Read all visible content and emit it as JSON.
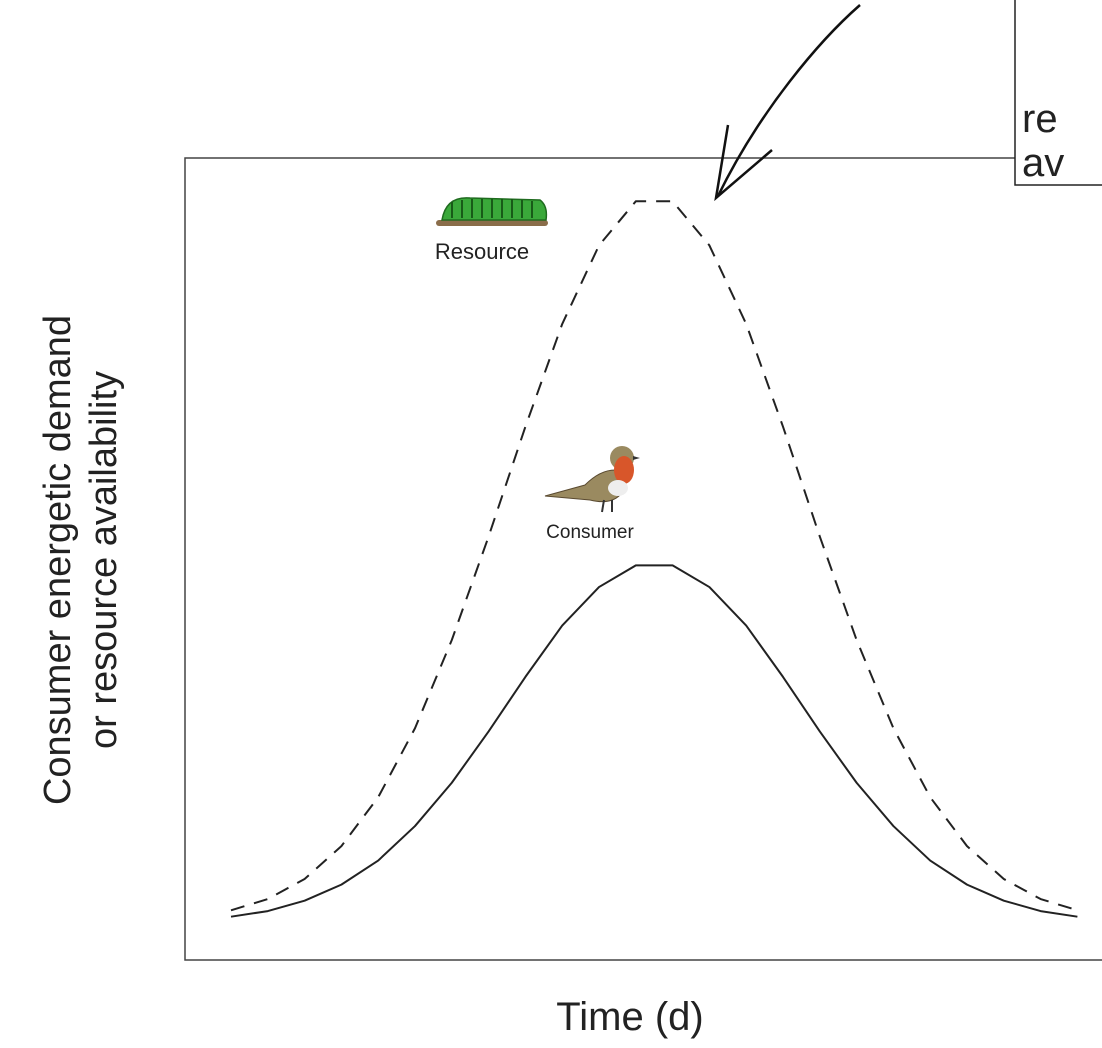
{
  "chart_data": {
    "type": "line",
    "xlabel": "Time (d)",
    "ylabel": [
      "Consumer energetic demand",
      "or resource  availability"
    ],
    "annotation": [
      "re",
      "av"
    ],
    "xlim": [
      0,
      100
    ],
    "ylim": [
      0,
      100
    ],
    "x": [
      5,
      9,
      13,
      17,
      21,
      25,
      29,
      33,
      37,
      41,
      45,
      49,
      53,
      57,
      61,
      65,
      69,
      73,
      77,
      81,
      85,
      89,
      93,
      97
    ],
    "series": [
      {
        "name": "Resource",
        "color": "#222222",
        "dashed": true,
        "values": [
          6.2,
          7.6,
          10.1,
          14.2,
          20.3,
          28.9,
          39.9,
          52.8,
          66.5,
          79.3,
          89.1,
          94.6,
          94.6,
          89.1,
          79.3,
          66.5,
          52.8,
          39.9,
          28.9,
          20.3,
          14.2,
          10.1,
          7.6,
          6.2
        ]
      },
      {
        "name": "Consumer",
        "color": "#222222",
        "dashed": false,
        "values": [
          5.4,
          6.1,
          7.4,
          9.4,
          12.4,
          16.7,
          22.1,
          28.5,
          35.3,
          41.7,
          46.5,
          49.2,
          49.2,
          46.5,
          41.7,
          35.3,
          28.5,
          22.1,
          16.7,
          12.4,
          9.4,
          7.4,
          6.1,
          5.4
        ]
      }
    ]
  }
}
